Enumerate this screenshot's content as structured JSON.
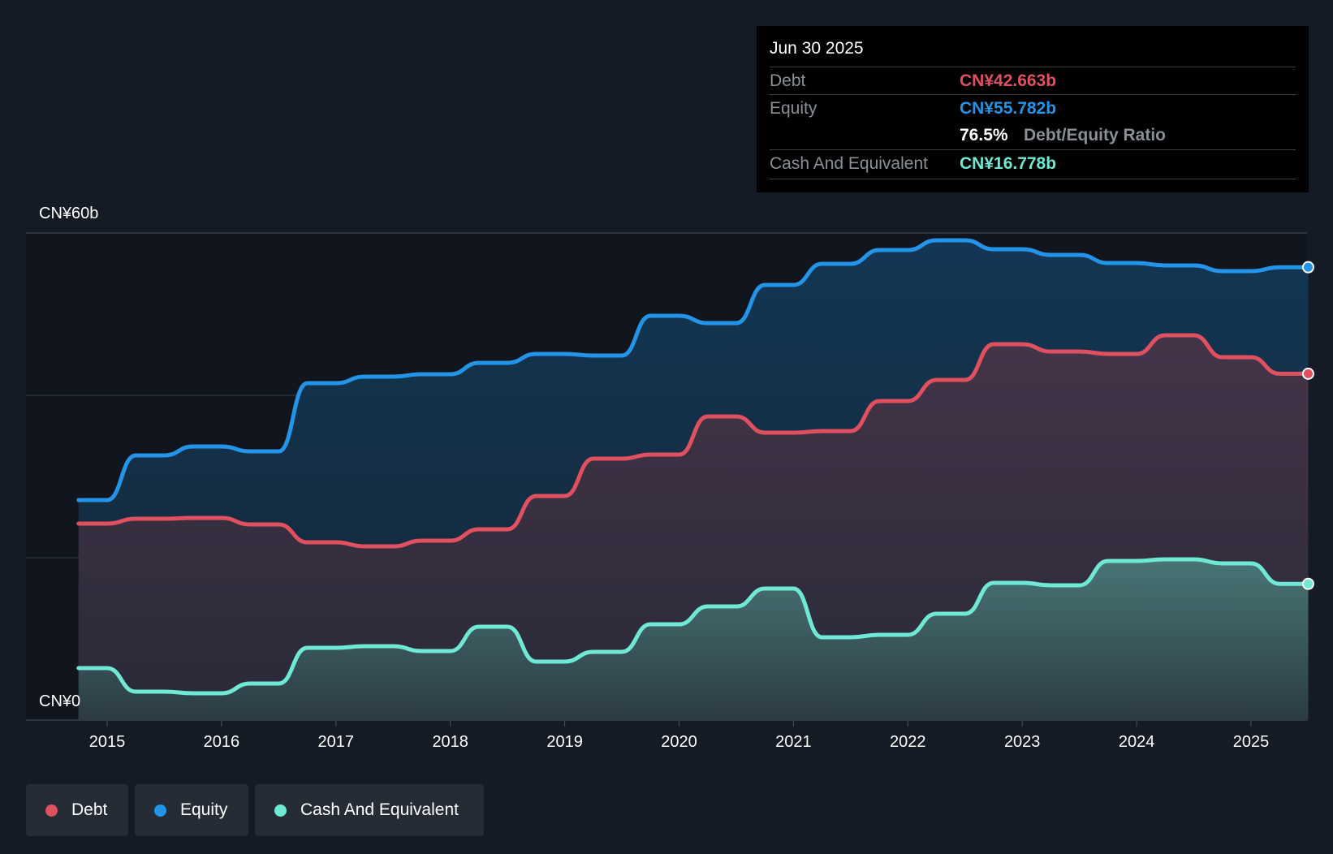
{
  "tooltip": {
    "date": "Jun 30 2025",
    "debt_label": "Debt",
    "debt_value": "CN¥42.663b",
    "equity_label": "Equity",
    "equity_value": "CN¥55.782b",
    "ratio_value": "76.5%",
    "ratio_label": "Debt/Equity Ratio",
    "cash_label": "Cash And Equivalent",
    "cash_value": "CN¥16.778b"
  },
  "legend": {
    "debt": "Debt",
    "equity": "Equity",
    "cash": "Cash And Equivalent"
  },
  "colors": {
    "debt": "#e0505f",
    "equity": "#2394e8",
    "cash": "#6fe8d4",
    "background": "#151b24"
  },
  "chart_data": {
    "type": "area",
    "title": "",
    "ylim": [
      0,
      60
    ],
    "y_tick_labels": {
      "top": "CN¥60b",
      "bottom": "CN¥0"
    },
    "x_ticks": [
      2015,
      2016,
      2017,
      2018,
      2019,
      2020,
      2021,
      2022,
      2023,
      2024,
      2025
    ],
    "x_range": [
      2014.75,
      2025.5
    ],
    "series": [
      {
        "name": "Equity",
        "key": "equity",
        "points": [
          [
            2014.75,
            27.1
          ],
          [
            2015.0,
            27.1
          ],
          [
            2015.25,
            32.6
          ],
          [
            2015.5,
            32.6
          ],
          [
            2015.75,
            33.7
          ],
          [
            2016.0,
            33.7
          ],
          [
            2016.25,
            33.1
          ],
          [
            2016.5,
            33.1
          ],
          [
            2016.75,
            41.5
          ],
          [
            2017.0,
            41.5
          ],
          [
            2017.25,
            42.3
          ],
          [
            2017.5,
            42.3
          ],
          [
            2017.75,
            42.6
          ],
          [
            2018.0,
            42.6
          ],
          [
            2018.25,
            44.0
          ],
          [
            2018.5,
            44.0
          ],
          [
            2018.75,
            45.1
          ],
          [
            2019.0,
            45.1
          ],
          [
            2019.25,
            44.9
          ],
          [
            2019.5,
            44.9
          ],
          [
            2019.75,
            49.8
          ],
          [
            2020.0,
            49.8
          ],
          [
            2020.25,
            48.9
          ],
          [
            2020.5,
            48.9
          ],
          [
            2020.75,
            53.6
          ],
          [
            2021.0,
            53.6
          ],
          [
            2021.25,
            56.2
          ],
          [
            2021.5,
            56.2
          ],
          [
            2021.75,
            57.9
          ],
          [
            2022.0,
            57.9
          ],
          [
            2022.25,
            59.1
          ],
          [
            2022.5,
            59.1
          ],
          [
            2022.75,
            58.0
          ],
          [
            2023.0,
            58.0
          ],
          [
            2023.25,
            57.3
          ],
          [
            2023.5,
            57.3
          ],
          [
            2023.75,
            56.3
          ],
          [
            2024.0,
            56.3
          ],
          [
            2024.25,
            56.0
          ],
          [
            2024.5,
            56.0
          ],
          [
            2024.75,
            55.3
          ],
          [
            2025.0,
            55.3
          ],
          [
            2025.25,
            55.782
          ],
          [
            2025.5,
            55.782
          ]
        ]
      },
      {
        "name": "Debt",
        "key": "debt",
        "points": [
          [
            2014.75,
            24.2
          ],
          [
            2015.0,
            24.2
          ],
          [
            2015.25,
            24.8
          ],
          [
            2015.5,
            24.8
          ],
          [
            2015.75,
            24.9
          ],
          [
            2016.0,
            24.9
          ],
          [
            2016.25,
            24.1
          ],
          [
            2016.5,
            24.1
          ],
          [
            2016.75,
            21.9
          ],
          [
            2017.0,
            21.9
          ],
          [
            2017.25,
            21.4
          ],
          [
            2017.5,
            21.4
          ],
          [
            2017.75,
            22.1
          ],
          [
            2018.0,
            22.1
          ],
          [
            2018.25,
            23.5
          ],
          [
            2018.5,
            23.5
          ],
          [
            2018.75,
            27.6
          ],
          [
            2019.0,
            27.6
          ],
          [
            2019.25,
            32.2
          ],
          [
            2019.5,
            32.2
          ],
          [
            2019.75,
            32.7
          ],
          [
            2020.0,
            32.7
          ],
          [
            2020.25,
            37.4
          ],
          [
            2020.5,
            37.4
          ],
          [
            2020.75,
            35.4
          ],
          [
            2021.0,
            35.4
          ],
          [
            2021.25,
            35.6
          ],
          [
            2021.5,
            35.6
          ],
          [
            2021.75,
            39.3
          ],
          [
            2022.0,
            39.3
          ],
          [
            2022.25,
            41.9
          ],
          [
            2022.5,
            41.9
          ],
          [
            2022.75,
            46.3
          ],
          [
            2023.0,
            46.3
          ],
          [
            2023.25,
            45.4
          ],
          [
            2023.5,
            45.4
          ],
          [
            2023.75,
            45.1
          ],
          [
            2024.0,
            45.1
          ],
          [
            2024.25,
            47.4
          ],
          [
            2024.5,
            47.4
          ],
          [
            2024.75,
            44.7
          ],
          [
            2025.0,
            44.7
          ],
          [
            2025.25,
            42.663
          ],
          [
            2025.5,
            42.663
          ]
        ]
      },
      {
        "name": "Cash And Equivalent",
        "key": "cash",
        "points": [
          [
            2014.75,
            6.4
          ],
          [
            2015.0,
            6.4
          ],
          [
            2015.25,
            3.5
          ],
          [
            2015.5,
            3.5
          ],
          [
            2015.75,
            3.3
          ],
          [
            2016.0,
            3.3
          ],
          [
            2016.25,
            4.5
          ],
          [
            2016.5,
            4.5
          ],
          [
            2016.75,
            8.9
          ],
          [
            2017.0,
            8.9
          ],
          [
            2017.25,
            9.1
          ],
          [
            2017.5,
            9.1
          ],
          [
            2017.75,
            8.5
          ],
          [
            2018.0,
            8.5
          ],
          [
            2018.25,
            11.5
          ],
          [
            2018.5,
            11.5
          ],
          [
            2018.75,
            7.2
          ],
          [
            2019.0,
            7.2
          ],
          [
            2019.25,
            8.4
          ],
          [
            2019.5,
            8.4
          ],
          [
            2019.75,
            11.8
          ],
          [
            2020.0,
            11.8
          ],
          [
            2020.25,
            14.0
          ],
          [
            2020.5,
            14.0
          ],
          [
            2020.75,
            16.2
          ],
          [
            2021.0,
            16.2
          ],
          [
            2021.25,
            10.2
          ],
          [
            2021.5,
            10.2
          ],
          [
            2021.75,
            10.5
          ],
          [
            2022.0,
            10.5
          ],
          [
            2022.25,
            13.1
          ],
          [
            2022.5,
            13.1
          ],
          [
            2022.75,
            16.9
          ],
          [
            2023.0,
            16.9
          ],
          [
            2023.25,
            16.6
          ],
          [
            2023.5,
            16.6
          ],
          [
            2023.75,
            19.6
          ],
          [
            2024.0,
            19.6
          ],
          [
            2024.25,
            19.8
          ],
          [
            2024.5,
            19.8
          ],
          [
            2024.75,
            19.3
          ],
          [
            2025.0,
            19.3
          ],
          [
            2025.25,
            16.778
          ],
          [
            2025.5,
            16.778
          ]
        ]
      }
    ]
  }
}
